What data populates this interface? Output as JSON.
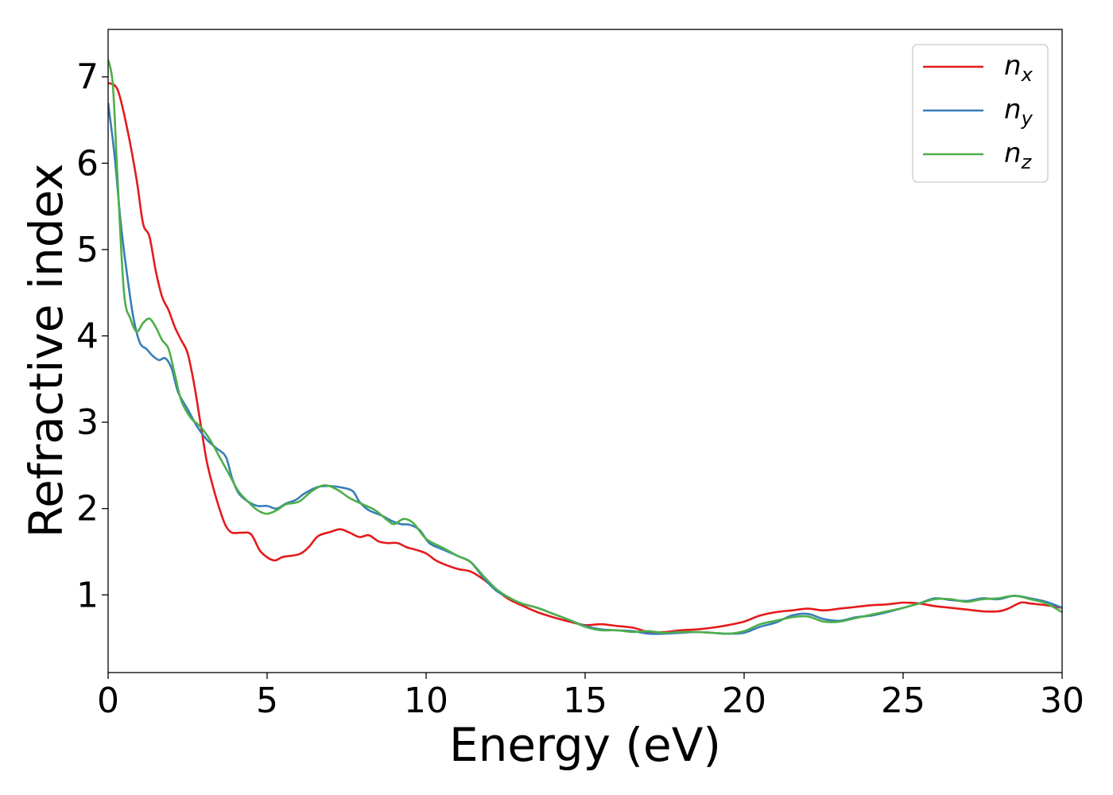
{
  "chart_data": {
    "type": "line",
    "title": "",
    "xlabel": "Energy (eV)",
    "ylabel": "Refractive index",
    "xlim": [
      0,
      30
    ],
    "ylim": [
      0.1,
      7.55
    ],
    "xticks": [
      0,
      5,
      10,
      15,
      20,
      25,
      30
    ],
    "yticks": [
      1,
      2,
      3,
      4,
      5,
      6,
      7
    ],
    "grid": false,
    "legend_position": "top-right",
    "series": [
      {
        "name": "n_x",
        "label_base": "n",
        "label_sub": "x",
        "color": "#e41a1c",
        "points": [
          [
            0,
            6.93
          ],
          [
            0.3,
            6.85
          ],
          [
            0.6,
            6.4
          ],
          [
            0.9,
            5.8
          ],
          [
            1.1,
            5.3
          ],
          [
            1.3,
            5.15
          ],
          [
            1.5,
            4.75
          ],
          [
            1.7,
            4.45
          ],
          [
            1.9,
            4.3
          ],
          [
            2.1,
            4.1
          ],
          [
            2.3,
            3.95
          ],
          [
            2.5,
            3.8
          ],
          [
            2.7,
            3.45
          ],
          [
            2.9,
            3.0
          ],
          [
            3.1,
            2.55
          ],
          [
            3.3,
            2.25
          ],
          [
            3.5,
            2.0
          ],
          [
            3.7,
            1.8
          ],
          [
            3.9,
            1.72
          ],
          [
            4.2,
            1.72
          ],
          [
            4.5,
            1.7
          ],
          [
            4.8,
            1.5
          ],
          [
            5.2,
            1.4
          ],
          [
            5.5,
            1.44
          ],
          [
            6.0,
            1.47
          ],
          [
            6.3,
            1.55
          ],
          [
            6.6,
            1.68
          ],
          [
            7.0,
            1.73
          ],
          [
            7.3,
            1.76
          ],
          [
            7.6,
            1.72
          ],
          [
            7.9,
            1.67
          ],
          [
            8.2,
            1.69
          ],
          [
            8.5,
            1.62
          ],
          [
            8.8,
            1.6
          ],
          [
            9.1,
            1.6
          ],
          [
            9.4,
            1.55
          ],
          [
            9.7,
            1.52
          ],
          [
            10.0,
            1.48
          ],
          [
            10.3,
            1.4
          ],
          [
            10.6,
            1.35
          ],
          [
            11.0,
            1.3
          ],
          [
            11.4,
            1.27
          ],
          [
            11.8,
            1.18
          ],
          [
            12.2,
            1.06
          ],
          [
            12.6,
            0.95
          ],
          [
            13.0,
            0.88
          ],
          [
            13.5,
            0.8
          ],
          [
            14.0,
            0.74
          ],
          [
            14.5,
            0.69
          ],
          [
            15.0,
            0.65
          ],
          [
            15.5,
            0.66
          ],
          [
            16.0,
            0.64
          ],
          [
            16.5,
            0.62
          ],
          [
            17.0,
            0.57
          ],
          [
            17.5,
            0.57
          ],
          [
            18.0,
            0.59
          ],
          [
            18.5,
            0.6
          ],
          [
            19.0,
            0.62
          ],
          [
            19.5,
            0.65
          ],
          [
            20.0,
            0.69
          ],
          [
            20.5,
            0.76
          ],
          [
            21.0,
            0.8
          ],
          [
            21.5,
            0.82
          ],
          [
            22.0,
            0.84
          ],
          [
            22.5,
            0.82
          ],
          [
            23.0,
            0.84
          ],
          [
            23.5,
            0.86
          ],
          [
            24.0,
            0.88
          ],
          [
            24.5,
            0.89
          ],
          [
            25.0,
            0.91
          ],
          [
            25.5,
            0.9
          ],
          [
            26.0,
            0.87
          ],
          [
            26.5,
            0.85
          ],
          [
            27.0,
            0.83
          ],
          [
            27.5,
            0.81
          ],
          [
            28.0,
            0.81
          ],
          [
            28.3,
            0.84
          ],
          [
            28.7,
            0.91
          ],
          [
            29.0,
            0.9
          ],
          [
            29.5,
            0.88
          ],
          [
            30.0,
            0.85
          ]
        ]
      },
      {
        "name": "n_y",
        "label_base": "n",
        "label_sub": "y",
        "color": "#377eb8",
        "points": [
          [
            0,
            6.7
          ],
          [
            0.2,
            6.1
          ],
          [
            0.4,
            5.3
          ],
          [
            0.6,
            4.7
          ],
          [
            0.8,
            4.2
          ],
          [
            1.0,
            3.92
          ],
          [
            1.2,
            3.85
          ],
          [
            1.4,
            3.77
          ],
          [
            1.6,
            3.72
          ],
          [
            1.8,
            3.74
          ],
          [
            2.0,
            3.62
          ],
          [
            2.2,
            3.35
          ],
          [
            2.5,
            3.15
          ],
          [
            2.8,
            2.95
          ],
          [
            3.1,
            2.8
          ],
          [
            3.4,
            2.7
          ],
          [
            3.7,
            2.6
          ],
          [
            3.9,
            2.35
          ],
          [
            4.1,
            2.18
          ],
          [
            4.4,
            2.08
          ],
          [
            4.7,
            2.03
          ],
          [
            5.0,
            2.03
          ],
          [
            5.3,
            2.0
          ],
          [
            5.6,
            2.06
          ],
          [
            5.9,
            2.1
          ],
          [
            6.2,
            2.18
          ],
          [
            6.6,
            2.25
          ],
          [
            7.0,
            2.26
          ],
          [
            7.4,
            2.24
          ],
          [
            7.7,
            2.2
          ],
          [
            7.9,
            2.08
          ],
          [
            8.2,
            1.98
          ],
          [
            8.6,
            1.92
          ],
          [
            8.9,
            1.86
          ],
          [
            9.2,
            1.82
          ],
          [
            9.5,
            1.81
          ],
          [
            9.8,
            1.75
          ],
          [
            10.1,
            1.6
          ],
          [
            10.5,
            1.53
          ],
          [
            11.0,
            1.45
          ],
          [
            11.4,
            1.38
          ],
          [
            11.8,
            1.2
          ],
          [
            12.2,
            1.05
          ],
          [
            12.6,
            0.97
          ],
          [
            13.0,
            0.9
          ],
          [
            13.5,
            0.85
          ],
          [
            14.0,
            0.78
          ],
          [
            14.5,
            0.71
          ],
          [
            15.0,
            0.64
          ],
          [
            15.5,
            0.6
          ],
          [
            16.0,
            0.59
          ],
          [
            16.5,
            0.58
          ],
          [
            17.0,
            0.55
          ],
          [
            17.5,
            0.55
          ],
          [
            18.0,
            0.56
          ],
          [
            18.5,
            0.57
          ],
          [
            19.0,
            0.56
          ],
          [
            19.5,
            0.55
          ],
          [
            20.0,
            0.56
          ],
          [
            20.5,
            0.63
          ],
          [
            21.0,
            0.68
          ],
          [
            21.5,
            0.76
          ],
          [
            22.0,
            0.78
          ],
          [
            22.5,
            0.72
          ],
          [
            23.0,
            0.7
          ],
          [
            23.5,
            0.74
          ],
          [
            24.0,
            0.76
          ],
          [
            24.5,
            0.8
          ],
          [
            25.0,
            0.85
          ],
          [
            25.5,
            0.9
          ],
          [
            26.0,
            0.96
          ],
          [
            26.5,
            0.94
          ],
          [
            27.0,
            0.93
          ],
          [
            27.5,
            0.96
          ],
          [
            28.0,
            0.95
          ],
          [
            28.5,
            0.99
          ],
          [
            29.0,
            0.96
          ],
          [
            29.5,
            0.92
          ],
          [
            30.0,
            0.85
          ]
        ]
      },
      {
        "name": "n_z",
        "label_base": "n",
        "label_sub": "z",
        "color": "#4daf4a",
        "points": [
          [
            0,
            7.2
          ],
          [
            0.15,
            6.9
          ],
          [
            0.3,
            5.8
          ],
          [
            0.5,
            4.5
          ],
          [
            0.7,
            4.2
          ],
          [
            0.9,
            4.05
          ],
          [
            1.1,
            4.15
          ],
          [
            1.3,
            4.2
          ],
          [
            1.5,
            4.1
          ],
          [
            1.7,
            3.95
          ],
          [
            1.9,
            3.85
          ],
          [
            2.1,
            3.55
          ],
          [
            2.3,
            3.25
          ],
          [
            2.6,
            3.05
          ],
          [
            2.9,
            2.95
          ],
          [
            3.2,
            2.8
          ],
          [
            3.5,
            2.6
          ],
          [
            3.8,
            2.4
          ],
          [
            4.1,
            2.2
          ],
          [
            4.4,
            2.08
          ],
          [
            4.7,
            1.98
          ],
          [
            5.0,
            1.94
          ],
          [
            5.3,
            1.98
          ],
          [
            5.6,
            2.05
          ],
          [
            6.0,
            2.08
          ],
          [
            6.4,
            2.2
          ],
          [
            6.8,
            2.27
          ],
          [
            7.2,
            2.22
          ],
          [
            7.6,
            2.12
          ],
          [
            8.0,
            2.05
          ],
          [
            8.4,
            1.98
          ],
          [
            8.8,
            1.86
          ],
          [
            9.0,
            1.82
          ],
          [
            9.3,
            1.88
          ],
          [
            9.6,
            1.83
          ],
          [
            10.0,
            1.65
          ],
          [
            10.5,
            1.55
          ],
          [
            11.0,
            1.45
          ],
          [
            11.4,
            1.38
          ],
          [
            11.8,
            1.22
          ],
          [
            12.2,
            1.07
          ],
          [
            12.6,
            0.97
          ],
          [
            13.0,
            0.9
          ],
          [
            13.5,
            0.85
          ],
          [
            14.0,
            0.78
          ],
          [
            14.5,
            0.71
          ],
          [
            15.0,
            0.63
          ],
          [
            15.5,
            0.59
          ],
          [
            16.0,
            0.59
          ],
          [
            16.5,
            0.57
          ],
          [
            17.0,
            0.58
          ],
          [
            17.5,
            0.56
          ],
          [
            18.0,
            0.57
          ],
          [
            18.5,
            0.57
          ],
          [
            19.0,
            0.56
          ],
          [
            19.5,
            0.55
          ],
          [
            20.0,
            0.58
          ],
          [
            20.5,
            0.66
          ],
          [
            21.0,
            0.7
          ],
          [
            21.5,
            0.74
          ],
          [
            22.0,
            0.75
          ],
          [
            22.5,
            0.69
          ],
          [
            23.0,
            0.69
          ],
          [
            23.5,
            0.73
          ],
          [
            24.0,
            0.77
          ],
          [
            24.5,
            0.81
          ],
          [
            25.0,
            0.85
          ],
          [
            25.5,
            0.9
          ],
          [
            26.0,
            0.95
          ],
          [
            26.5,
            0.95
          ],
          [
            27.0,
            0.92
          ],
          [
            27.5,
            0.95
          ],
          [
            28.0,
            0.96
          ],
          [
            28.5,
            0.99
          ],
          [
            29.0,
            0.95
          ],
          [
            29.5,
            0.9
          ],
          [
            30.0,
            0.8
          ]
        ]
      }
    ]
  }
}
